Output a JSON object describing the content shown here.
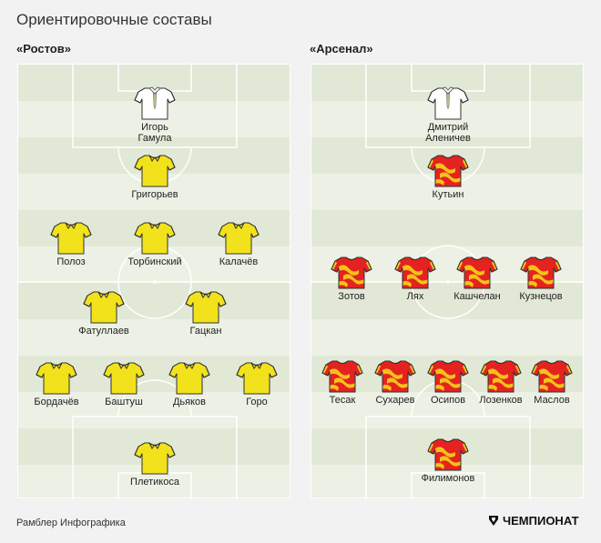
{
  "title": "Ориентировочные составы",
  "colors": {
    "rostov_shirt": "#f2e21b",
    "arsenal_shirt": "#e42320",
    "arsenal_pattern": "#f4c21a",
    "keeper_shirt": "#ffffff"
  },
  "teams": [
    {
      "name": "«Ростов»",
      "players": [
        {
          "label": "Игорь\nГамула",
          "kind": "keeper"
        },
        {
          "label": "Григорьев",
          "kind": "rostov"
        },
        {
          "label": "Полоз",
          "kind": "rostov"
        },
        {
          "label": "Торбинский",
          "kind": "rostov"
        },
        {
          "label": "Калачёв",
          "kind": "rostov"
        },
        {
          "label": "Фатуллаев",
          "kind": "rostov"
        },
        {
          "label": "Гацкан",
          "kind": "rostov"
        },
        {
          "label": "Бордачёв",
          "kind": "rostov"
        },
        {
          "label": "Баштуш",
          "kind": "rostov"
        },
        {
          "label": "Дьяков",
          "kind": "rostov"
        },
        {
          "label": "Горо",
          "kind": "rostov"
        },
        {
          "label": "Плетикоса",
          "kind": "rostov"
        }
      ]
    },
    {
      "name": "«Арсенал»",
      "players": [
        {
          "label": "Дмитрий\nАленичев",
          "kind": "keeper"
        },
        {
          "label": "Кутьин",
          "kind": "arsenal"
        },
        {
          "label": "Зотов",
          "kind": "arsenal"
        },
        {
          "label": "Лях",
          "kind": "arsenal"
        },
        {
          "label": "Кашчелан",
          "kind": "arsenal"
        },
        {
          "label": "Кузнецов",
          "kind": "arsenal"
        },
        {
          "label": "Тесак",
          "kind": "arsenal"
        },
        {
          "label": "Сухарев",
          "kind": "arsenal"
        },
        {
          "label": "Осипов",
          "kind": "arsenal"
        },
        {
          "label": "Лозенков",
          "kind": "arsenal"
        },
        {
          "label": "Маслов",
          "kind": "arsenal"
        },
        {
          "label": "Филимонов",
          "kind": "arsenal"
        }
      ]
    }
  ],
  "footer": {
    "credit": "Рамблер Инфографика",
    "brand": "ЧЕМПИОНАТ",
    "brand_icon": "championat-logo-icon"
  }
}
